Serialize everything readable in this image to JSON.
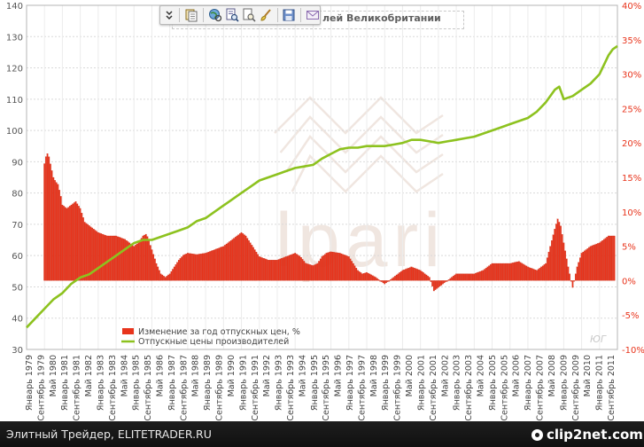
{
  "footer": {
    "left_text": "Элитный Трейдер, ELITETRADER.RU",
    "logo_text": "clip2net.com"
  },
  "toolbar": {
    "buttons": [
      "chevron-down-icon",
      "copy-icon",
      "web-icon",
      "zoom-doc-icon",
      "print-preview-icon",
      "brush-icon",
      "save-icon",
      "mail-icon"
    ]
  },
  "colors": {
    "bars": "#e8341c",
    "line": "#8dc21f",
    "left_axis": "#555555",
    "right_axis": "#e8341c",
    "grid": "#d9d9d9",
    "watermark": "#f0e6e0"
  },
  "chart_data": {
    "type": "bar",
    "title": "лей Великобритании",
    "watermark": "lpari",
    "corner_label": "ЮГ",
    "x_ticks": [
      "Январь 1979",
      "Сентябрь 1979",
      "Май 1980",
      "Январь 1981",
      "Сентябрь 1981",
      "Май 1982",
      "Январь 1983",
      "Сентябрь 1983",
      "Май 1984",
      "Январь 1985",
      "Сентябрь 1985",
      "Май 1986",
      "Январь 1987",
      "Сентябрь 1987",
      "Май 1988",
      "Январь 1989",
      "Сентябрь 1989",
      "Май 1990",
      "Январь 1991",
      "Сентябрь 1991",
      "Май 1992",
      "Январь 1993",
      "Сентябрь 1993",
      "Май 1994",
      "Январь 1995",
      "Сентябрь 1995",
      "Май 1996",
      "Январь 1997",
      "Сентябрь 1997",
      "Май 1998",
      "Январь 1999",
      "Сентябрь 1999",
      "Май 2000",
      "Январь 2001",
      "Сентябрь 2001",
      "Май 2002",
      "Январь 2003",
      "Сентябрь 2003",
      "Май 2004",
      "Январь 2005",
      "Сентябрь 2005",
      "Май 2006",
      "Январь 2007",
      "Сентябрь 2007",
      "Май 2008",
      "Январь 2009",
      "Сентябрь 2009",
      "Май 2010",
      "Январь 2011",
      "Сентябрь 2011"
    ],
    "x_range": [
      1979.0,
      2012.0
    ],
    "left_axis": {
      "min": 30,
      "max": 140,
      "ticks": [
        30,
        40,
        50,
        60,
        70,
        80,
        90,
        100,
        110,
        120,
        130,
        140
      ]
    },
    "right_axis": {
      "min": -10,
      "max": 40,
      "ticks": [
        "-10%",
        "-5%",
        "0%",
        "5%",
        "10%",
        "15%",
        "20%",
        "25%",
        "30%",
        "35%",
        "40%"
      ]
    },
    "grid": true,
    "legend_position": "bottom-left",
    "series": [
      {
        "name": "Изменение за год отпускных цен, %",
        "type": "bar",
        "axis": "right",
        "points": [
          [
            1980.0,
            17.0
          ],
          [
            1980.08,
            18.0
          ],
          [
            1980.16,
            18.5
          ],
          [
            1980.25,
            18.0
          ],
          [
            1980.33,
            17.0
          ],
          [
            1980.5,
            15.0
          ],
          [
            1980.6,
            14.5
          ],
          [
            1980.75,
            14.0
          ],
          [
            1980.9,
            12.5
          ],
          [
            1981.0,
            11.0
          ],
          [
            1981.25,
            10.5
          ],
          [
            1981.5,
            11.0
          ],
          [
            1981.75,
            11.5
          ],
          [
            1982.0,
            10.5
          ],
          [
            1982.25,
            8.5
          ],
          [
            1982.5,
            8.0
          ],
          [
            1982.75,
            7.5
          ],
          [
            1983.0,
            7.0
          ],
          [
            1983.5,
            6.5
          ],
          [
            1984.0,
            6.5
          ],
          [
            1984.5,
            6.0
          ],
          [
            1985.0,
            5.0
          ],
          [
            1985.25,
            5.5
          ],
          [
            1985.5,
            6.5
          ],
          [
            1985.7,
            6.8
          ],
          [
            1986.0,
            4.5
          ],
          [
            1986.25,
            2.5
          ],
          [
            1986.5,
            1.0
          ],
          [
            1986.75,
            0.5
          ],
          [
            1987.0,
            1.0
          ],
          [
            1987.5,
            3.0
          ],
          [
            1987.75,
            3.7
          ],
          [
            1988.0,
            4.0
          ],
          [
            1988.5,
            3.8
          ],
          [
            1989.0,
            4.0
          ],
          [
            1989.5,
            4.5
          ],
          [
            1990.0,
            5.0
          ],
          [
            1990.5,
            6.0
          ],
          [
            1991.0,
            7.0
          ],
          [
            1991.25,
            6.5
          ],
          [
            1991.5,
            5.5
          ],
          [
            1991.75,
            4.5
          ],
          [
            1992.0,
            3.5
          ],
          [
            1992.5,
            3.0
          ],
          [
            1993.0,
            3.0
          ],
          [
            1993.5,
            3.5
          ],
          [
            1994.0,
            4.0
          ],
          [
            1994.3,
            3.5
          ],
          [
            1994.6,
            2.5
          ],
          [
            1995.0,
            2.2
          ],
          [
            1995.25,
            2.5
          ],
          [
            1995.5,
            3.5
          ],
          [
            1995.75,
            4.0
          ],
          [
            1996.0,
            4.2
          ],
          [
            1996.5,
            4.0
          ],
          [
            1997.0,
            3.5
          ],
          [
            1997.5,
            1.5
          ],
          [
            1997.75,
            1.0
          ],
          [
            1998.0,
            1.2
          ],
          [
            1998.5,
            0.5
          ],
          [
            1999.0,
            -0.5
          ],
          [
            1999.5,
            0.5
          ],
          [
            2000.0,
            1.5
          ],
          [
            2000.5,
            2.0
          ],
          [
            2001.0,
            1.5
          ],
          [
            2001.5,
            0.5
          ],
          [
            2001.75,
            -1.5
          ],
          [
            2002.0,
            -1.0
          ],
          [
            2002.5,
            0.0
          ],
          [
            2003.0,
            1.0
          ],
          [
            2003.5,
            1.0
          ],
          [
            2004.0,
            1.0
          ],
          [
            2004.5,
            1.5
          ],
          [
            2005.0,
            2.5
          ],
          [
            2005.5,
            2.5
          ],
          [
            2006.0,
            2.5
          ],
          [
            2006.5,
            2.8
          ],
          [
            2007.0,
            2.0
          ],
          [
            2007.5,
            1.5
          ],
          [
            2008.0,
            2.5
          ],
          [
            2008.25,
            5.0
          ],
          [
            2008.5,
            7.5
          ],
          [
            2008.67,
            9.0
          ],
          [
            2008.83,
            8.0
          ],
          [
            2009.0,
            5.5
          ],
          [
            2009.25,
            2.0
          ],
          [
            2009.5,
            -1.0
          ],
          [
            2009.75,
            2.0
          ],
          [
            2010.0,
            4.0
          ],
          [
            2010.5,
            5.0
          ],
          [
            2011.0,
            5.5
          ],
          [
            2011.5,
            6.5
          ],
          [
            2011.85,
            6.5
          ]
        ]
      },
      {
        "name": "Отпускные цены производителей",
        "type": "line",
        "axis": "left",
        "points": [
          [
            1979.0,
            37.0
          ],
          [
            1979.5,
            40.0
          ],
          [
            1980.0,
            43.0
          ],
          [
            1980.5,
            46.0
          ],
          [
            1981.0,
            48.0
          ],
          [
            1981.5,
            51.0
          ],
          [
            1982.0,
            53.0
          ],
          [
            1982.5,
            54.0
          ],
          [
            1983.0,
            56.0
          ],
          [
            1983.5,
            58.0
          ],
          [
            1984.0,
            60.0
          ],
          [
            1984.5,
            62.0
          ],
          [
            1985.0,
            64.0
          ],
          [
            1985.5,
            65.0
          ],
          [
            1986.0,
            65.0
          ],
          [
            1986.5,
            66.0
          ],
          [
            1987.0,
            67.0
          ],
          [
            1987.5,
            68.0
          ],
          [
            1988.0,
            69.0
          ],
          [
            1988.5,
            71.0
          ],
          [
            1989.0,
            72.0
          ],
          [
            1989.5,
            74.0
          ],
          [
            1990.0,
            76.0
          ],
          [
            1990.5,
            78.0
          ],
          [
            1991.0,
            80.0
          ],
          [
            1991.5,
            82.0
          ],
          [
            1992.0,
            84.0
          ],
          [
            1992.5,
            85.0
          ],
          [
            1993.0,
            86.0
          ],
          [
            1993.5,
            87.0
          ],
          [
            1994.0,
            88.0
          ],
          [
            1994.5,
            88.5
          ],
          [
            1995.0,
            89.0
          ],
          [
            1995.5,
            91.0
          ],
          [
            1996.0,
            92.5
          ],
          [
            1996.5,
            94.0
          ],
          [
            1997.0,
            94.5
          ],
          [
            1997.5,
            94.5
          ],
          [
            1998.0,
            95.0
          ],
          [
            1998.5,
            95.0
          ],
          [
            1999.0,
            95.0
          ],
          [
            1999.5,
            95.5
          ],
          [
            2000.0,
            96.0
          ],
          [
            2000.5,
            97.0
          ],
          [
            2001.0,
            97.0
          ],
          [
            2001.5,
            96.5
          ],
          [
            2002.0,
            96.0
          ],
          [
            2002.5,
            96.5
          ],
          [
            2003.0,
            97.0
          ],
          [
            2003.5,
            97.5
          ],
          [
            2004.0,
            98.0
          ],
          [
            2004.5,
            99.0
          ],
          [
            2005.0,
            100.0
          ],
          [
            2005.5,
            101.0
          ],
          [
            2006.0,
            102.0
          ],
          [
            2006.5,
            103.0
          ],
          [
            2007.0,
            104.0
          ],
          [
            2007.5,
            106.0
          ],
          [
            2008.0,
            109.0
          ],
          [
            2008.5,
            113.0
          ],
          [
            2008.75,
            114.0
          ],
          [
            2009.0,
            110.0
          ],
          [
            2009.5,
            111.0
          ],
          [
            2010.0,
            113.0
          ],
          [
            2010.5,
            115.0
          ],
          [
            2011.0,
            118.0
          ],
          [
            2011.5,
            124.0
          ],
          [
            2011.75,
            126.0
          ],
          [
            2012.0,
            127.0
          ]
        ]
      }
    ]
  }
}
